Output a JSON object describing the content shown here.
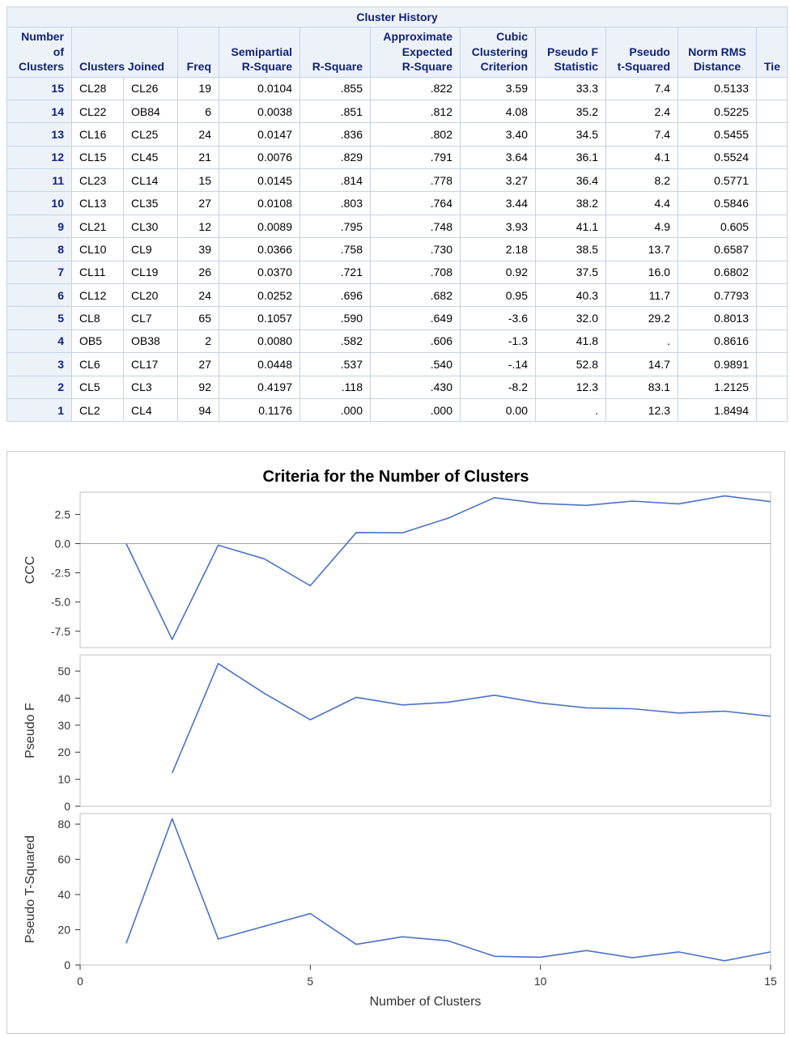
{
  "table": {
    "caption": "Cluster History",
    "headers": {
      "num_clusters": [
        "Number",
        "of",
        "Clusters"
      ],
      "clusters_joined": "Clusters Joined",
      "freq": "Freq",
      "semipartial": [
        "Semipartial",
        "R-Square"
      ],
      "rsquare": "R-Square",
      "approx": [
        "Approximate",
        "Expected",
        "R-Square"
      ],
      "ccc": [
        "Cubic",
        "Clustering",
        "Criterion"
      ],
      "pseudo_f": [
        "Pseudo F",
        "Statistic"
      ],
      "pseudo_t": [
        "Pseudo",
        "t-Squared"
      ],
      "norm_rms": [
        "Norm RMS",
        "Distance"
      ],
      "tie": "Tie"
    },
    "rows": [
      [
        "15",
        "CL28",
        "CL26",
        "19",
        "0.0104",
        ".855",
        ".822",
        "3.59",
        "33.3",
        "7.4",
        "0.5133",
        ""
      ],
      [
        "14",
        "CL22",
        "OB84",
        "6",
        "0.0038",
        ".851",
        ".812",
        "4.08",
        "35.2",
        "2.4",
        "0.5225",
        ""
      ],
      [
        "13",
        "CL16",
        "CL25",
        "24",
        "0.0147",
        ".836",
        ".802",
        "3.40",
        "34.5",
        "7.4",
        "0.5455",
        ""
      ],
      [
        "12",
        "CL15",
        "CL45",
        "21",
        "0.0076",
        ".829",
        ".791",
        "3.64",
        "36.1",
        "4.1",
        "0.5524",
        ""
      ],
      [
        "11",
        "CL23",
        "CL14",
        "15",
        "0.0145",
        ".814",
        ".778",
        "3.27",
        "36.4",
        "8.2",
        "0.5771",
        ""
      ],
      [
        "10",
        "CL13",
        "CL35",
        "27",
        "0.0108",
        ".803",
        ".764",
        "3.44",
        "38.2",
        "4.4",
        "0.5846",
        ""
      ],
      [
        "9",
        "CL21",
        "CL30",
        "12",
        "0.0089",
        ".795",
        ".748",
        "3.93",
        "41.1",
        "4.9",
        "0.605",
        ""
      ],
      [
        "8",
        "CL10",
        "CL9",
        "39",
        "0.0366",
        ".758",
        ".730",
        "2.18",
        "38.5",
        "13.7",
        "0.6587",
        ""
      ],
      [
        "7",
        "CL11",
        "CL19",
        "26",
        "0.0370",
        ".721",
        ".708",
        "0.92",
        "37.5",
        "16.0",
        "0.6802",
        ""
      ],
      [
        "6",
        "CL12",
        "CL20",
        "24",
        "0.0252",
        ".696",
        ".682",
        "0.95",
        "40.3",
        "11.7",
        "0.7793",
        ""
      ],
      [
        "5",
        "CL8",
        "CL7",
        "65",
        "0.1057",
        ".590",
        ".649",
        "-3.6",
        "32.0",
        "29.2",
        "0.8013",
        ""
      ],
      [
        "4",
        "OB5",
        "OB38",
        "2",
        "0.0080",
        ".582",
        ".606",
        "-1.3",
        "41.8",
        ".",
        "0.8616",
        ""
      ],
      [
        "3",
        "CL6",
        "CL17",
        "27",
        "0.0448",
        ".537",
        ".540",
        "-.14",
        "52.8",
        "14.7",
        "0.9891",
        ""
      ],
      [
        "2",
        "CL5",
        "CL3",
        "92",
        "0.4197",
        ".118",
        ".430",
        "-8.2",
        "12.3",
        "83.1",
        "1.2125",
        ""
      ],
      [
        "1",
        "CL2",
        "CL4",
        "94",
        "0.1176",
        ".000",
        ".000",
        "0.00",
        ".",
        "12.3",
        "1.8494",
        ""
      ]
    ]
  },
  "chart_data": {
    "type": "line",
    "title": "Criteria for the Number of Clusters",
    "xlabel": "Number of Clusters",
    "xlim": [
      0,
      15
    ],
    "xticks": [
      0,
      5,
      10,
      15
    ],
    "line_color": "#4a72c6",
    "panels": [
      {
        "ylabel": "CCC",
        "ylim": [
          -8.9,
          4.4
        ],
        "yticks": [
          2.5,
          0.0,
          -2.5,
          -5.0,
          -7.5
        ],
        "ytick_labels": [
          "2.5",
          "0.0",
          "-2.5",
          "-5.0",
          "-7.5"
        ],
        "reference_line": 0,
        "x": [
          1,
          2,
          3,
          4,
          5,
          6,
          7,
          8,
          9,
          10,
          11,
          12,
          13,
          14,
          15
        ],
        "y": [
          0.0,
          -8.2,
          -0.14,
          -1.3,
          -3.6,
          0.95,
          0.92,
          2.18,
          3.93,
          3.44,
          3.27,
          3.64,
          3.4,
          4.08,
          3.59
        ]
      },
      {
        "ylabel": "Pseudo F",
        "ylim": [
          0,
          56
        ],
        "yticks": [
          0,
          10,
          20,
          30,
          40,
          50
        ],
        "ytick_labels": [
          "0",
          "10",
          "20",
          "30",
          "40",
          "50"
        ],
        "x": [
          2,
          3,
          4,
          5,
          6,
          7,
          8,
          9,
          10,
          11,
          12,
          13,
          14,
          15
        ],
        "y": [
          12.3,
          52.8,
          41.8,
          32.0,
          40.3,
          37.5,
          38.5,
          41.1,
          38.2,
          36.4,
          36.1,
          34.5,
          35.2,
          33.3
        ]
      },
      {
        "ylabel": "Pseudo T-Squared",
        "ylim": [
          0,
          86
        ],
        "yticks": [
          0,
          20,
          40,
          60,
          80
        ],
        "ytick_labels": [
          "0",
          "20",
          "40",
          "60",
          "80"
        ],
        "x": [
          1,
          2,
          3,
          5,
          6,
          7,
          8,
          9,
          10,
          11,
          12,
          13,
          14,
          15
        ],
        "y": [
          12.3,
          83.1,
          14.7,
          29.2,
          11.7,
          16.0,
          13.7,
          4.9,
          4.4,
          8.2,
          4.1,
          7.4,
          2.4,
          7.4
        ]
      }
    ]
  }
}
